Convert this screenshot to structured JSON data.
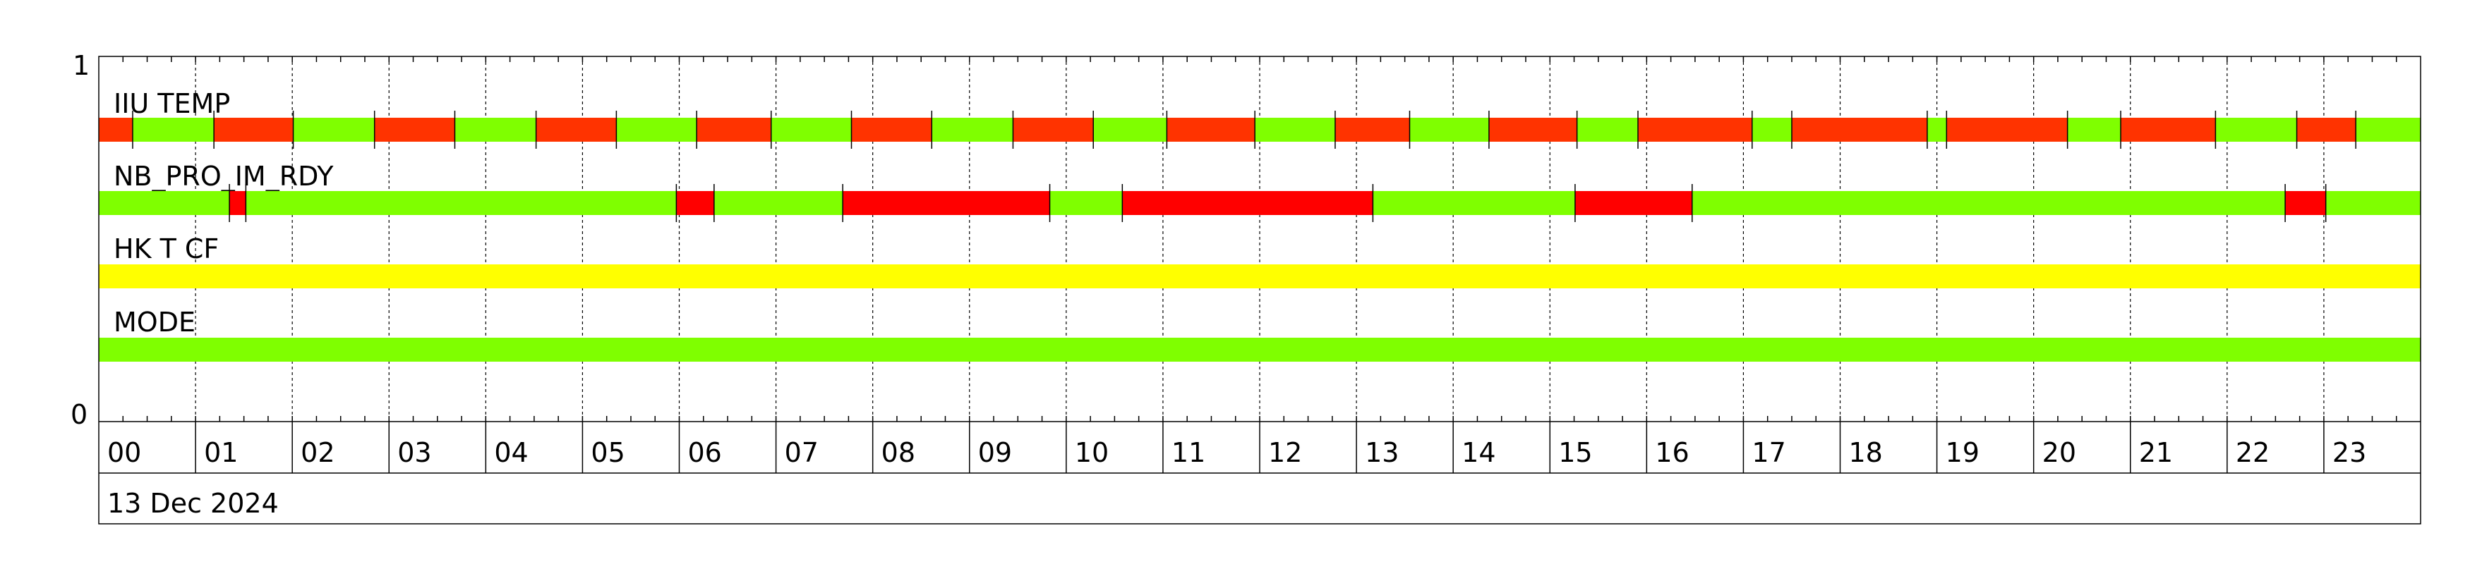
{
  "chart_data": {
    "type": "timeline",
    "xlabel": "13 Dec 2024",
    "x_unit": "hour",
    "xlim": [
      0,
      24
    ],
    "x_ticks": [
      "00",
      "01",
      "02",
      "03",
      "04",
      "05",
      "06",
      "07",
      "08",
      "09",
      "10",
      "11",
      "12",
      "13",
      "14",
      "15",
      "16",
      "17",
      "18",
      "19",
      "20",
      "21",
      "22",
      "23"
    ],
    "ylim": [
      0,
      1
    ],
    "y_ticks": [
      "1",
      "0"
    ],
    "grid": "vertical dotted, hourly",
    "colors": {
      "green": "#7FFF00",
      "orange": "#FF3300",
      "red": "#FF0000",
      "yellow": "#FFFF00"
    },
    "series": [
      {
        "name": "IIU TEMP",
        "segments": [
          [
            0,
            0.35,
            "orange"
          ],
          [
            0.35,
            1.19,
            "green"
          ],
          [
            1.19,
            2.01,
            "orange"
          ],
          [
            2.01,
            2.85,
            "green"
          ],
          [
            2.85,
            3.68,
            "orange"
          ],
          [
            3.68,
            4.52,
            "green"
          ],
          [
            4.52,
            5.35,
            "orange"
          ],
          [
            5.35,
            6.18,
            "green"
          ],
          [
            6.18,
            6.95,
            "orange"
          ],
          [
            6.95,
            7.78,
            "green"
          ],
          [
            7.78,
            8.61,
            "orange"
          ],
          [
            8.61,
            9.45,
            "green"
          ],
          [
            9.45,
            10.28,
            "orange"
          ],
          [
            10.28,
            11.04,
            "green"
          ],
          [
            11.04,
            11.95,
            "orange"
          ],
          [
            11.95,
            12.78,
            "green"
          ],
          [
            12.78,
            13.55,
            "orange"
          ],
          [
            13.55,
            14.37,
            "green"
          ],
          [
            14.37,
            15.28,
            "orange"
          ],
          [
            15.28,
            15.91,
            "green"
          ],
          [
            15.91,
            17.09,
            "orange"
          ],
          [
            17.09,
            17.5,
            "green"
          ],
          [
            17.5,
            18.9,
            "orange"
          ],
          [
            18.9,
            19.1,
            "green"
          ],
          [
            19.1,
            20.35,
            "orange"
          ],
          [
            20.35,
            20.9,
            "green"
          ],
          [
            20.9,
            21.88,
            "orange"
          ],
          [
            21.88,
            22.72,
            "green"
          ],
          [
            22.72,
            23.33,
            "orange"
          ],
          [
            23.33,
            24,
            "green"
          ]
        ]
      },
      {
        "name": "NB_PRO_IM_RDY",
        "segments": [
          [
            0,
            1.35,
            "green"
          ],
          [
            1.35,
            1.52,
            "red"
          ],
          [
            1.52,
            5.97,
            "green"
          ],
          [
            5.97,
            6.36,
            "red"
          ],
          [
            6.36,
            7.69,
            "green"
          ],
          [
            7.69,
            9.83,
            "red"
          ],
          [
            9.83,
            10.58,
            "green"
          ],
          [
            10.58,
            13.17,
            "red"
          ],
          [
            13.17,
            15.26,
            "green"
          ],
          [
            15.26,
            16.47,
            "red"
          ],
          [
            16.47,
            22.6,
            "green"
          ],
          [
            22.6,
            23.02,
            "red"
          ],
          [
            23.02,
            24,
            "green"
          ]
        ]
      },
      {
        "name": "HK T CF",
        "segments": [
          [
            0,
            24,
            "yellow"
          ]
        ]
      },
      {
        "name": "MODE",
        "segments": [
          [
            0,
            24,
            "green"
          ]
        ]
      }
    ]
  }
}
